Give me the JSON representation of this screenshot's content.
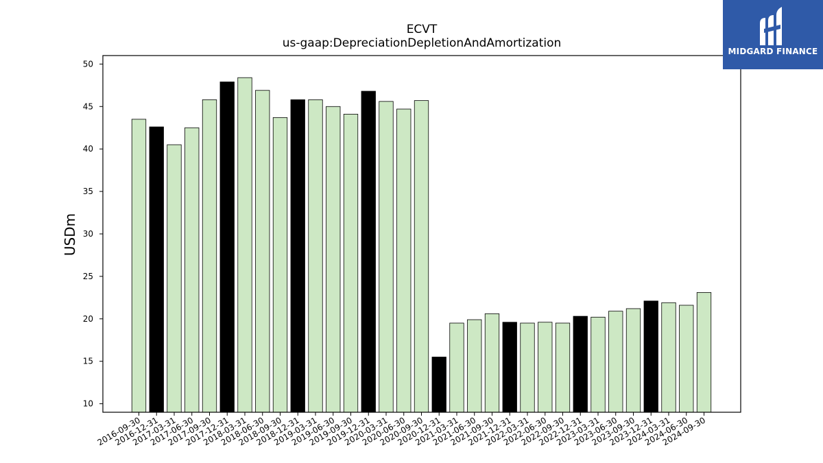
{
  "chart_data": {
    "type": "bar",
    "title": "ECVT",
    "subtitle": "us-gaap:DepreciationDepletionAndAmortization",
    "xlabel": "",
    "ylabel": "USDm",
    "ylim": [
      9.0,
      51.0
    ],
    "yticks": [
      10,
      15,
      20,
      25,
      30,
      35,
      40,
      45,
      50
    ],
    "categories": [
      "2016-09-30",
      "2016-12-31",
      "2017-03-31",
      "2017-06-30",
      "2017-09-30",
      "2017-12-31",
      "2018-03-31",
      "2018-06-30",
      "2018-09-30",
      "2018-12-31",
      "2019-03-31",
      "2019-06-30",
      "2019-09-30",
      "2019-12-31",
      "2020-03-31",
      "2020-06-30",
      "2020-09-30",
      "2020-12-31",
      "2021-03-31",
      "2021-06-30",
      "2021-09-30",
      "2021-12-31",
      "2022-03-31",
      "2022-06-30",
      "2022-09-30",
      "2022-12-31",
      "2023-03-31",
      "2023-06-30",
      "2023-09-30",
      "2023-12-31",
      "2024-03-31",
      "2024-06-30",
      "2024-09-30"
    ],
    "values": [
      43.5,
      42.6,
      40.5,
      42.5,
      45.8,
      47.9,
      48.4,
      46.9,
      43.7,
      45.8,
      45.8,
      45.0,
      44.1,
      46.8,
      45.6,
      44.7,
      45.7,
      15.5,
      19.5,
      19.9,
      20.6,
      19.6,
      19.5,
      19.6,
      19.5,
      20.3,
      20.2,
      20.9,
      21.2,
      22.1,
      21.9,
      21.6,
      23.1
    ],
    "colors": {
      "default": "#cde8c4",
      "year_end": "#000000",
      "edge": "#000000"
    },
    "highlight_rule": "December 31 (fiscal year-end) bars filled black",
    "grid": false,
    "legend": "none"
  },
  "brand": {
    "name": "MIDGARD FINANCE",
    "icon": "midgard-logo-icon",
    "background": "#2f5aa8"
  }
}
